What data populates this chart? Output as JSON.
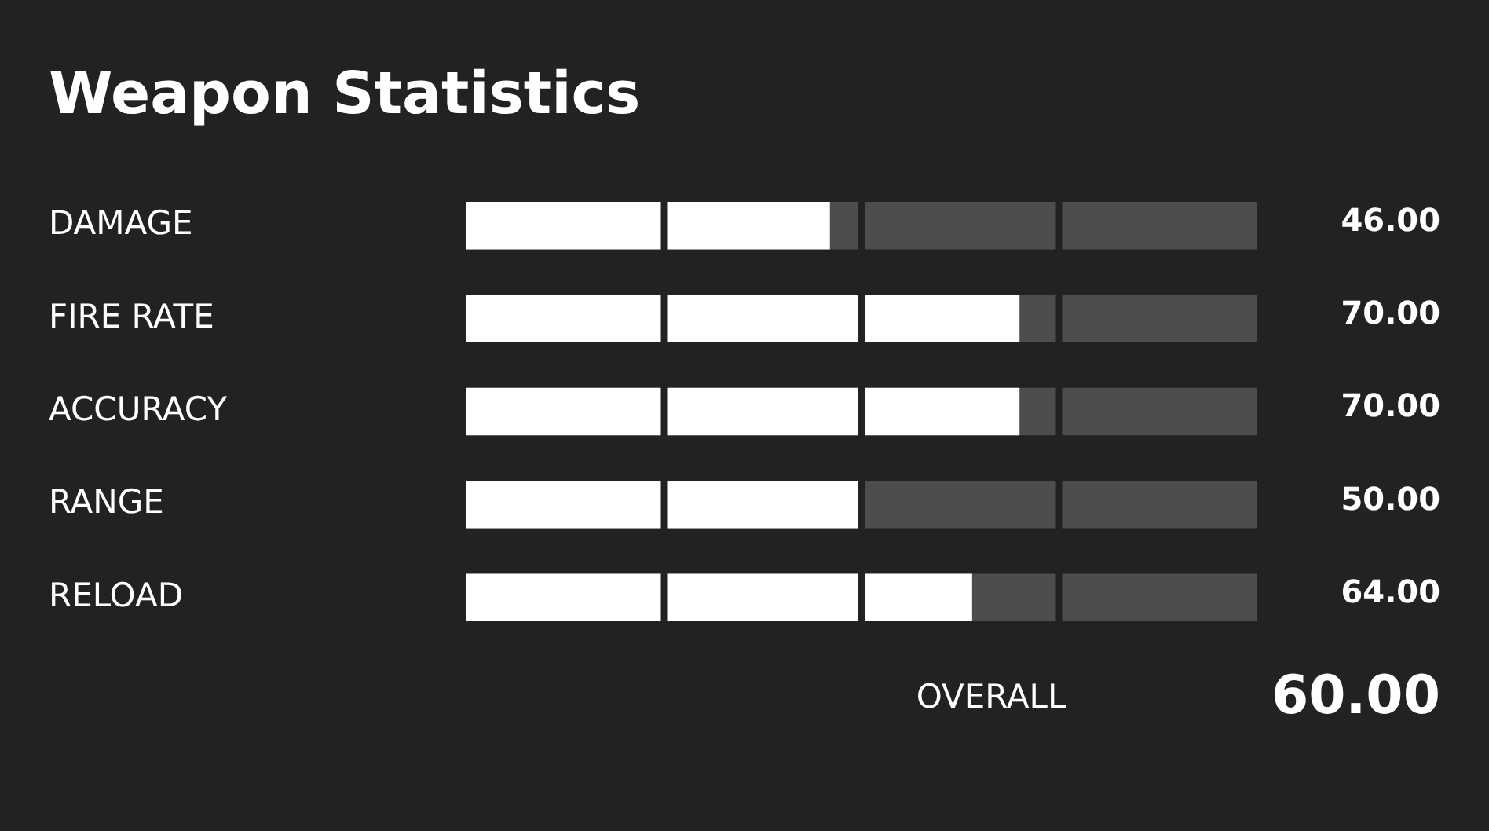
{
  "chart_data": {
    "type": "bar",
    "orientation": "horizontal",
    "title": "Weapon Statistics",
    "categories": [
      "DAMAGE",
      "FIRE RATE",
      "ACCURACY",
      "RANGE",
      "RELOAD"
    ],
    "values": [
      46,
      70,
      70,
      50,
      64
    ],
    "color": "#ffffff",
    "value_labels": [
      "46.00",
      "70.00",
      "70.00",
      "50.00",
      "64.00"
    ],
    "xlim": [
      0,
      100
    ],
    "xticks": [
      {
        "value": 25,
        "label": null
      },
      {
        "value": 50,
        "label": null
      },
      {
        "value": 75,
        "label": null
      }
    ],
    "tick_labels": "y",
    "grid": "x",
    "legend": false,
    "annotations": [
      "OVERALL",
      "60.00"
    ]
  }
}
